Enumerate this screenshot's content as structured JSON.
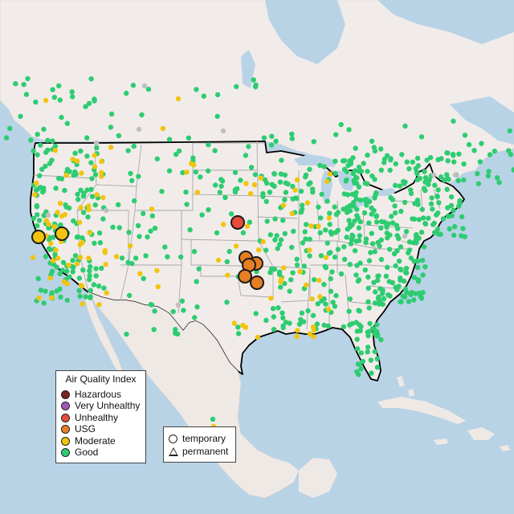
{
  "colors": {
    "ocean": "#b9d3e6",
    "land": "#f1ecea",
    "land_mexico": "#efe9e6",
    "border": "#000000",
    "state_line": "#a8a8a8",
    "good": "#2ecc71",
    "moderate": "#f1c40f",
    "usg": "#e67e22",
    "unhealthy": "#e74c3c",
    "very_unhealthy": "#9b59b6",
    "hazardous": "#7b241c",
    "inactive": "#bfbfbf"
  },
  "legend": {
    "title": "Air Quality Index",
    "items": [
      {
        "label": "Hazardous",
        "color": "#7b241c"
      },
      {
        "label": "Very Unhealthy",
        "color": "#9b59b6"
      },
      {
        "label": "Unhealthy",
        "color": "#e74c3c"
      },
      {
        "label": "USG",
        "color": "#e67e22"
      },
      {
        "label": "Moderate",
        "color": "#f1c40f"
      },
      {
        "label": "Good",
        "color": "#2ecc71"
      }
    ]
  },
  "monitor_types": {
    "temporary": "temporary",
    "permanent": "permanent"
  },
  "highlighted_monitors": [
    {
      "category": "unhealthy",
      "region": "Nebraska/Kansas"
    },
    {
      "category": "usg",
      "region": "Oklahoma"
    },
    {
      "category": "usg",
      "region": "Oklahoma"
    },
    {
      "category": "usg",
      "region": "Oklahoma"
    },
    {
      "category": "usg",
      "region": "Oklahoma"
    },
    {
      "category": "usg",
      "region": "Oklahoma"
    },
    {
      "category": "usg",
      "region": "Oklahoma"
    },
    {
      "category": "moderate",
      "region": "Northern California"
    },
    {
      "category": "moderate",
      "region": "Northern California"
    }
  ]
}
